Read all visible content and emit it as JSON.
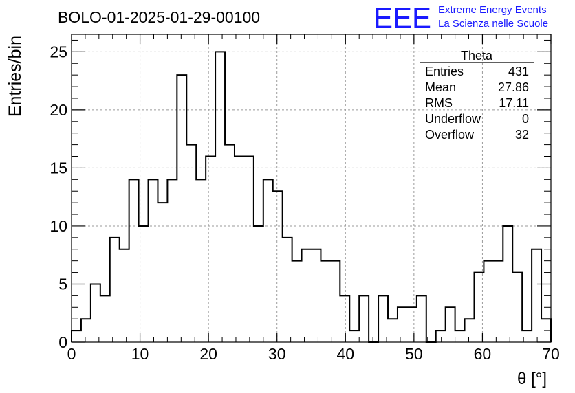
{
  "chart_data": {
    "type": "bar",
    "title": "BOLO-01-2025-01-29-00100",
    "xlabel": "θ [°]",
    "ylabel": "Entries/bin",
    "xlim": [
      0,
      70
    ],
    "ylim": [
      0,
      26.5
    ],
    "bin_width": 1.4,
    "bin_edges_start": 0,
    "x_ticks": [
      "0",
      "10",
      "20",
      "30",
      "40",
      "50",
      "60",
      "70"
    ],
    "y_ticks": [
      "0",
      "5",
      "10",
      "15",
      "20",
      "25"
    ],
    "grid": true,
    "values": [
      1,
      2,
      5,
      4,
      9,
      8,
      14,
      10,
      14,
      12,
      14,
      23,
      17,
      14,
      16,
      25,
      17,
      16,
      16,
      10,
      14,
      13,
      9,
      7,
      8,
      8,
      7,
      7,
      4,
      1,
      4,
      0,
      4,
      2,
      3,
      3,
      4,
      0,
      1,
      3,
      1,
      2,
      6,
      7,
      7,
      10,
      6,
      1,
      8,
      2
    ],
    "stats": {
      "title": "Theta",
      "rows": [
        {
          "label": "Entries",
          "value": "431"
        },
        {
          "label": "Mean",
          "value": "27.86"
        },
        {
          "label": "RMS",
          "value": "17.11"
        },
        {
          "label": "Underflow",
          "value": "0"
        },
        {
          "label": "Overflow",
          "value": "32"
        }
      ]
    }
  },
  "logo": {
    "text": "EEE",
    "line1": "Extreme Energy Events",
    "line2": "La Scienza nelle Scuole",
    "color": "#1a1aff"
  }
}
